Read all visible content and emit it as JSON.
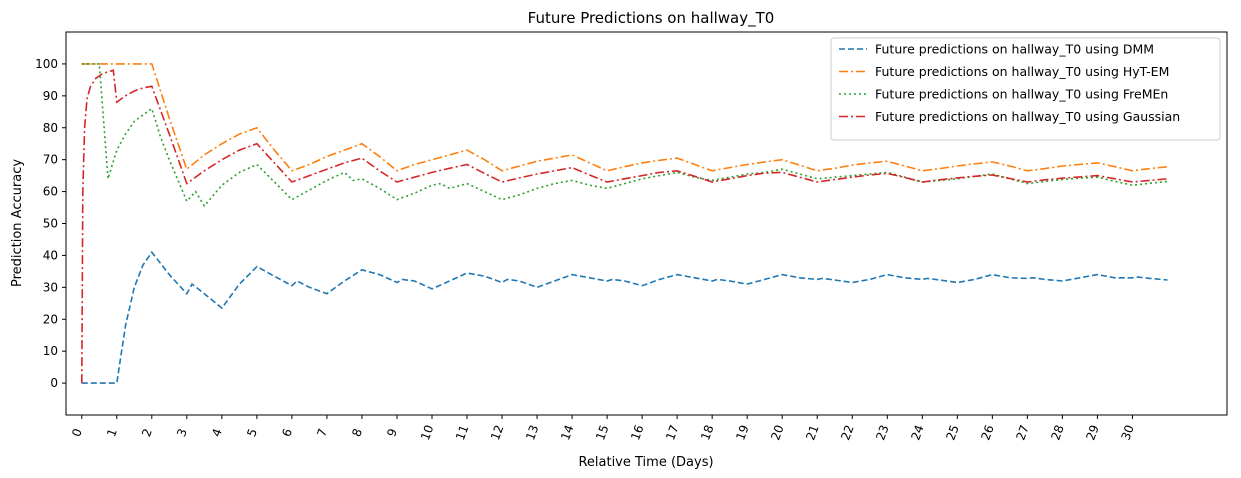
{
  "chart_data": {
    "type": "line",
    "title": "Future Predictions on hallway_T0",
    "xlabel": "Relative Time (Days)",
    "ylabel": "Prediction Accuracy",
    "xlim": [
      -0.45,
      32.7
    ],
    "ylim": [
      -10,
      110
    ],
    "x_ticks": [
      0,
      1,
      2,
      3,
      4,
      5,
      6,
      7,
      8,
      9,
      10,
      11,
      12,
      13,
      14,
      15,
      16,
      17,
      18,
      19,
      20,
      21,
      22,
      23,
      24,
      25,
      26,
      27,
      28,
      29,
      30
    ],
    "y_ticks": [
      0,
      10,
      20,
      30,
      40,
      50,
      60,
      70,
      80,
      90,
      100
    ],
    "grid": false,
    "legend_position": "top-right",
    "series": [
      {
        "name": "Future predictions on hallway_T0 using DMM",
        "color": "#1f77b4",
        "style": "dashed",
        "points": [
          [
            0,
            0
          ],
          [
            1,
            0
          ],
          [
            1.25,
            18
          ],
          [
            1.5,
            30
          ],
          [
            1.75,
            37
          ],
          [
            2,
            41
          ],
          [
            2.5,
            34
          ],
          [
            3,
            28
          ],
          [
            3.15,
            31
          ],
          [
            3.5,
            28
          ],
          [
            4,
            23.5
          ],
          [
            4.5,
            31
          ],
          [
            5,
            36.5
          ],
          [
            5.5,
            33.5
          ],
          [
            6,
            30.5
          ],
          [
            6.15,
            32
          ],
          [
            6.5,
            30
          ],
          [
            7,
            28
          ],
          [
            7.5,
            32
          ],
          [
            8,
            35.5
          ],
          [
            8.5,
            34
          ],
          [
            9,
            31.5
          ],
          [
            9.15,
            32.5
          ],
          [
            9.5,
            32
          ],
          [
            10,
            29.5
          ],
          [
            10.5,
            32
          ],
          [
            11,
            34.5
          ],
          [
            11.5,
            33.5
          ],
          [
            12,
            31.5
          ],
          [
            12.15,
            32.5
          ],
          [
            12.5,
            32
          ],
          [
            13,
            30
          ],
          [
            13.5,
            32
          ],
          [
            14,
            34
          ],
          [
            14.5,
            33
          ],
          [
            15,
            32
          ],
          [
            15.15,
            32.5
          ],
          [
            15.5,
            32
          ],
          [
            16,
            30.5
          ],
          [
            16.5,
            32.5
          ],
          [
            17,
            34
          ],
          [
            17.5,
            33
          ],
          [
            18,
            32
          ],
          [
            18.15,
            32.5
          ],
          [
            18.5,
            32
          ],
          [
            19,
            31
          ],
          [
            19.5,
            32.5
          ],
          [
            20,
            34
          ],
          [
            20.5,
            33
          ],
          [
            21,
            32.5
          ],
          [
            21.15,
            32.8
          ],
          [
            21.5,
            32.3
          ],
          [
            22,
            31.5
          ],
          [
            22.5,
            32.5
          ],
          [
            23,
            34
          ],
          [
            23.5,
            33
          ],
          [
            24,
            32.5
          ],
          [
            24.15,
            32.8
          ],
          [
            24.5,
            32.3
          ],
          [
            25,
            31.5
          ],
          [
            25.5,
            32.5
          ],
          [
            26,
            34
          ],
          [
            26.5,
            33
          ],
          [
            27,
            32.8
          ],
          [
            27.15,
            33
          ],
          [
            27.5,
            32.5
          ],
          [
            28,
            32
          ],
          [
            28.5,
            33
          ],
          [
            29,
            34
          ],
          [
            29.5,
            33
          ],
          [
            30,
            33
          ],
          [
            30.15,
            33.2
          ],
          [
            30.5,
            32.8
          ],
          [
            31,
            32.3
          ]
        ]
      },
      {
        "name": "Future predictions on hallway_T0 using HyT-EM",
        "color": "#ff7f0e",
        "style": "dashdot",
        "points": [
          [
            0,
            100
          ],
          [
            2,
            100
          ],
          [
            2.5,
            83
          ],
          [
            3,
            67
          ],
          [
            3.5,
            71.5
          ],
          [
            4,
            75
          ],
          [
            4.5,
            78
          ],
          [
            5,
            80
          ],
          [
            5.5,
            73
          ],
          [
            6,
            66.5
          ],
          [
            6.5,
            68.5
          ],
          [
            7,
            71
          ],
          [
            7.5,
            73
          ],
          [
            8,
            75
          ],
          [
            8.5,
            71
          ],
          [
            9,
            66.5
          ],
          [
            9.5,
            68.5
          ],
          [
            10,
            70
          ],
          [
            10.5,
            71.5
          ],
          [
            11,
            73
          ],
          [
            11.5,
            70
          ],
          [
            12,
            66.5
          ],
          [
            12.5,
            68
          ],
          [
            13,
            69.5
          ],
          [
            13.5,
            70.5
          ],
          [
            14,
            71.5
          ],
          [
            14.5,
            69
          ],
          [
            15,
            66.5
          ],
          [
            15.5,
            67.8
          ],
          [
            16,
            69
          ],
          [
            16.5,
            69.8
          ],
          [
            17,
            70.5
          ],
          [
            17.5,
            68.5
          ],
          [
            18,
            66.5
          ],
          [
            18.5,
            67.5
          ],
          [
            19,
            68.5
          ],
          [
            19.5,
            69.3
          ],
          [
            20,
            70
          ],
          [
            20.5,
            68.3
          ],
          [
            21,
            66.5
          ],
          [
            21.5,
            67.3
          ],
          [
            22,
            68.3
          ],
          [
            22.5,
            69
          ],
          [
            23,
            69.5
          ],
          [
            23.5,
            68
          ],
          [
            24,
            66.5
          ],
          [
            24.5,
            67.2
          ],
          [
            25,
            68
          ],
          [
            25.5,
            68.7
          ],
          [
            26,
            69.3
          ],
          [
            26.5,
            68
          ],
          [
            27,
            66.5
          ],
          [
            27.5,
            67.2
          ],
          [
            28,
            68
          ],
          [
            28.5,
            68.5
          ],
          [
            29,
            69
          ],
          [
            29.5,
            67.8
          ],
          [
            30,
            66.5
          ],
          [
            30.5,
            67.2
          ],
          [
            31,
            67.8
          ]
        ]
      },
      {
        "name": "Future predictions on hallway_T0 using FreMEn",
        "color": "#2ca02c",
        "style": "dotted",
        "points": [
          [
            0,
            100
          ],
          [
            0.5,
            100
          ],
          [
            0.75,
            64
          ],
          [
            1,
            73
          ],
          [
            1.25,
            78
          ],
          [
            1.5,
            82
          ],
          [
            2,
            86
          ],
          [
            2.25,
            77
          ],
          [
            2.5,
            70
          ],
          [
            3,
            57
          ],
          [
            3.25,
            60
          ],
          [
            3.5,
            55.5
          ],
          [
            4,
            62
          ],
          [
            4.5,
            66
          ],
          [
            5,
            68.5
          ],
          [
            5.5,
            63
          ],
          [
            6,
            57.5
          ],
          [
            6.5,
            60.5
          ],
          [
            7,
            63.5
          ],
          [
            7.5,
            66
          ],
          [
            7.75,
            63.5
          ],
          [
            8,
            64
          ],
          [
            8.5,
            61
          ],
          [
            9,
            57.5
          ],
          [
            9.5,
            59.5
          ],
          [
            10,
            62
          ],
          [
            10.25,
            62.5
          ],
          [
            10.5,
            61
          ],
          [
            11,
            62.5
          ],
          [
            11.5,
            60
          ],
          [
            12,
            57.5
          ],
          [
            12.5,
            59
          ],
          [
            13,
            61
          ],
          [
            13.5,
            62.5
          ],
          [
            14,
            63.5
          ],
          [
            14.5,
            62
          ],
          [
            15,
            61
          ],
          [
            15.5,
            62.5
          ],
          [
            16,
            64
          ],
          [
            16.5,
            65
          ],
          [
            17,
            66
          ],
          [
            17.5,
            64.5
          ],
          [
            18,
            63.5
          ],
          [
            18.5,
            64.5
          ],
          [
            19,
            65.5
          ],
          [
            19.5,
            66
          ],
          [
            20,
            67
          ],
          [
            20.5,
            65.5
          ],
          [
            21,
            64
          ],
          [
            21.5,
            64.5
          ],
          [
            22,
            65
          ],
          [
            22.5,
            65.5
          ],
          [
            23,
            66
          ],
          [
            23.5,
            64.5
          ],
          [
            24,
            63
          ],
          [
            24.5,
            63.5
          ],
          [
            25,
            64
          ],
          [
            25.5,
            64.8
          ],
          [
            26,
            65.5
          ],
          [
            26.5,
            64
          ],
          [
            27,
            62.5
          ],
          [
            27.5,
            63.2
          ],
          [
            28,
            63.8
          ],
          [
            28.5,
            64.2
          ],
          [
            29,
            64.5
          ],
          [
            29.5,
            63.2
          ],
          [
            30,
            62
          ],
          [
            30.5,
            62.6
          ],
          [
            31,
            63.2
          ]
        ]
      },
      {
        "name": "Future predictions on hallway_T0 using Gaussian",
        "color": "#d62728",
        "style": "dashdot",
        "points": [
          [
            0,
            0
          ],
          [
            0.03,
            60
          ],
          [
            0.08,
            80
          ],
          [
            0.15,
            89
          ],
          [
            0.25,
            93
          ],
          [
            0.4,
            95.5
          ],
          [
            0.6,
            97
          ],
          [
            0.9,
            98
          ],
          [
            1,
            88
          ],
          [
            1.25,
            90
          ],
          [
            1.5,
            91.5
          ],
          [
            1.75,
            92.5
          ],
          [
            2,
            93
          ],
          [
            2.5,
            78
          ],
          [
            3,
            62.5
          ],
          [
            3.5,
            66.5
          ],
          [
            4,
            70
          ],
          [
            4.5,
            73
          ],
          [
            5,
            75
          ],
          [
            5.5,
            69
          ],
          [
            6,
            63
          ],
          [
            6.5,
            65
          ],
          [
            7,
            67
          ],
          [
            7.5,
            69
          ],
          [
            8,
            70.5
          ],
          [
            8.5,
            66.5
          ],
          [
            9,
            63
          ],
          [
            9.5,
            64.5
          ],
          [
            10,
            66
          ],
          [
            10.5,
            67.3
          ],
          [
            11,
            68.5
          ],
          [
            11.5,
            65.7
          ],
          [
            12,
            63
          ],
          [
            12.5,
            64.3
          ],
          [
            13,
            65.5
          ],
          [
            13.5,
            66.5
          ],
          [
            14,
            67.5
          ],
          [
            14.5,
            65.2
          ],
          [
            15,
            63
          ],
          [
            15.5,
            64
          ],
          [
            16,
            65
          ],
          [
            16.5,
            66
          ],
          [
            17,
            66.5
          ],
          [
            17.5,
            64.8
          ],
          [
            18,
            63
          ],
          [
            18.5,
            64
          ],
          [
            19,
            65
          ],
          [
            19.5,
            65.8
          ],
          [
            20,
            66
          ],
          [
            20.5,
            64.5
          ],
          [
            21,
            63
          ],
          [
            21.5,
            63.8
          ],
          [
            22,
            64.5
          ],
          [
            22.5,
            65.2
          ],
          [
            23,
            65.7
          ],
          [
            23.5,
            64.4
          ],
          [
            24,
            63
          ],
          [
            24.5,
            63.7
          ],
          [
            25,
            64.3
          ],
          [
            25.5,
            64.8
          ],
          [
            26,
            65.2
          ],
          [
            26.5,
            64.1
          ],
          [
            27,
            63
          ],
          [
            27.5,
            63.7
          ],
          [
            28,
            64.2
          ],
          [
            28.5,
            64.6
          ],
          [
            29,
            65
          ],
          [
            29.5,
            64
          ],
          [
            30,
            63
          ],
          [
            30.5,
            63.5
          ],
          [
            31,
            64
          ]
        ]
      }
    ]
  }
}
